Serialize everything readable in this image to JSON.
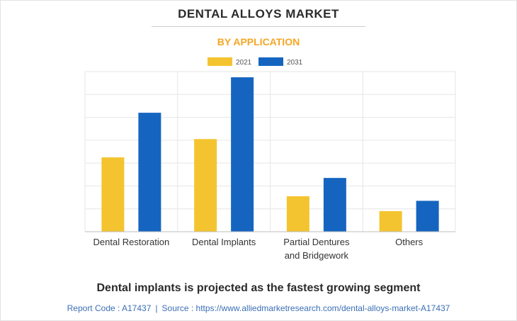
{
  "title": "DENTAL ALLOYS MARKET",
  "subtitle": "BY APPLICATION",
  "footer_note": "Dental implants is projected as the fastest growing segment",
  "report": {
    "code_label": "Report Code : A17437",
    "separator": "|",
    "source_label": "Source : https://www.alliedmarketresearch.com/dental-alloys-market-A17437"
  },
  "colors": {
    "series_2021": "#f4c430",
    "series_2031": "#1565c0",
    "grid": "#e6e6e6",
    "axis": "#bdbdbd",
    "text": "#333333"
  },
  "chart_data": {
    "type": "bar",
    "title": "DENTAL ALLOYS MARKET",
    "subtitle": "BY APPLICATION",
    "categories": [
      [
        "Dental Restoration"
      ],
      [
        "Dental Implants"
      ],
      [
        "Partial Dentures",
        "and Bridgework"
      ],
      [
        "Others"
      ]
    ],
    "series": [
      {
        "name": "2021",
        "values": [
          3.25,
          4.05,
          1.55,
          0.9
        ]
      },
      {
        "name": "2031",
        "values": [
          5.2,
          6.75,
          2.35,
          1.35
        ]
      }
    ],
    "xlabel": "",
    "ylabel": "",
    "ylim": [
      0,
      7
    ],
    "gridlines": 7,
    "y_tick_labels_shown": false,
    "legend_position": "top-center"
  }
}
